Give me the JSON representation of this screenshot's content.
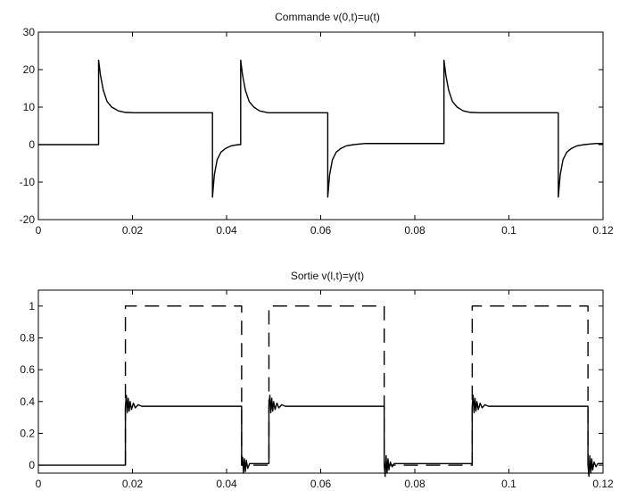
{
  "chart_data": [
    {
      "type": "line",
      "title": "Commande v(0,t)=u(t)",
      "xlim": [
        0,
        0.12
      ],
      "ylim": [
        -20,
        30
      ],
      "xticks": [
        0,
        0.02,
        0.04,
        0.06,
        0.08,
        0.1,
        0.12
      ],
      "xtick_labels": [
        "0",
        "0.02",
        "0.04",
        "0.06",
        "0.08",
        "0.1",
        "0.12"
      ],
      "yticks": [
        -20,
        -10,
        0,
        10,
        20,
        30
      ],
      "ytick_labels": [
        "-20",
        "-10",
        "0",
        "10",
        "20",
        "30"
      ],
      "grid": false,
      "series": [
        {
          "style": "solid",
          "color": "#000000",
          "x": [
            0,
            0.0128,
            0.0128,
            0.0132,
            0.0138,
            0.0146,
            0.0156,
            0.017,
            0.0185,
            0.0205,
            0.037,
            0.037,
            0.0374,
            0.038,
            0.0388,
            0.0398,
            0.041,
            0.0425,
            0.043,
            0.043,
            0.0434,
            0.044,
            0.0448,
            0.0458,
            0.047,
            0.0485,
            0.049,
            0.0615,
            0.0615,
            0.0619,
            0.0625,
            0.0633,
            0.0643,
            0.0655,
            0.067,
            0.0695,
            0.0862,
            0.0862,
            0.0866,
            0.0872,
            0.088,
            0.089,
            0.0903,
            0.0918,
            0.094,
            0.1105,
            0.1105,
            0.1109,
            0.1115,
            0.1123,
            0.1133,
            0.1145,
            0.116,
            0.1185,
            0.12
          ],
          "y": [
            0,
            0,
            22.5,
            18.5,
            14.5,
            11.5,
            10,
            9,
            8.6,
            8.5,
            8.5,
            -14,
            -8,
            -4,
            -2,
            -1,
            -0.3,
            0,
            0,
            22.5,
            18.5,
            14.5,
            11.5,
            10,
            9,
            8.6,
            8.5,
            8.5,
            -14,
            -8,
            -4,
            -2,
            -1,
            -0.3,
            0,
            0.3,
            0.3,
            22.5,
            18.5,
            14.5,
            11.5,
            10,
            9,
            8.6,
            8.5,
            8.5,
            -14,
            -8,
            -4,
            -2,
            -1,
            -0.3,
            0,
            0.3,
            0.3
          ]
        }
      ]
    },
    {
      "type": "line",
      "title": "Sortie v(l,t)=y(t)",
      "xlim": [
        0,
        0.12
      ],
      "ylim": [
        -0.05,
        1.1
      ],
      "xticks": [
        0,
        0.02,
        0.04,
        0.06,
        0.08,
        0.1,
        0.12
      ],
      "xtick_labels": [
        "0",
        "0.02",
        "0.04",
        "0.06",
        "0.08",
        "0.1",
        "0.12"
      ],
      "yticks": [
        0,
        0.2,
        0.4,
        0.6,
        0.8,
        1
      ],
      "ytick_labels": [
        "0",
        "0.2",
        "0.4",
        "0.6",
        "0.8",
        "1"
      ],
      "grid": false,
      "series": [
        {
          "style": "dashed",
          "color": "#000000",
          "x": [
            0.0185,
            0.0185,
            0.0432,
            0.0432,
            0.049,
            0.049,
            0.0735,
            0.0735,
            0.0922,
            0.0922,
            0.1168,
            0.1168
          ],
          "y": [
            0,
            1,
            1,
            0,
            0,
            1,
            1,
            0,
            0,
            1,
            1,
            0
          ]
        },
        {
          "style": "solid",
          "color": "#000000",
          "x": [
            0,
            0.0185,
            0.0185,
            0.0187,
            0.0189,
            0.0191,
            0.0193,
            0.0195,
            0.0198,
            0.0202,
            0.0206,
            0.0212,
            0.022,
            0.0432,
            0.0432,
            0.0434,
            0.0436,
            0.0438,
            0.044,
            0.0442,
            0.0445,
            0.0449,
            0.049,
            0.049,
            0.0492,
            0.0494,
            0.0496,
            0.0498,
            0.05,
            0.0503,
            0.0507,
            0.0511,
            0.0517,
            0.0525,
            0.0735,
            0.0735,
            0.0737,
            0.0739,
            0.0741,
            0.0743,
            0.0745,
            0.0748,
            0.0752,
            0.0756,
            0.0765,
            0.0922,
            0.0922,
            0.0924,
            0.0926,
            0.0928,
            0.093,
            0.0932,
            0.0935,
            0.0939,
            0.0943,
            0.0949,
            0.0957,
            0.1168,
            0.1168,
            0.117,
            0.1172,
            0.1174,
            0.1176,
            0.1178,
            0.1181,
            0.1185,
            0.1189,
            0.12
          ],
          "y": [
            0,
            0,
            0.37,
            0.44,
            0.33,
            0.42,
            0.34,
            0.4,
            0.35,
            0.39,
            0.36,
            0.38,
            0.37,
            0.37,
            0,
            0.05,
            -0.05,
            0.04,
            -0.04,
            0.03,
            -0.02,
            0.01,
            0.01,
            0.37,
            0.44,
            0.33,
            0.42,
            0.34,
            0.4,
            0.35,
            0.39,
            0.36,
            0.38,
            0.37,
            0.37,
            0,
            -0.07,
            0.06,
            -0.05,
            0.04,
            -0.03,
            0.02,
            -0.01,
            0.01,
            0.01,
            0.01,
            0.37,
            0.44,
            0.33,
            0.42,
            0.34,
            0.4,
            0.35,
            0.39,
            0.36,
            0.38,
            0.37,
            0.37,
            0,
            -0.07,
            0.06,
            -0.05,
            0.04,
            -0.03,
            0.02,
            -0.01,
            0.01,
            0.01
          ]
        }
      ]
    }
  ]
}
